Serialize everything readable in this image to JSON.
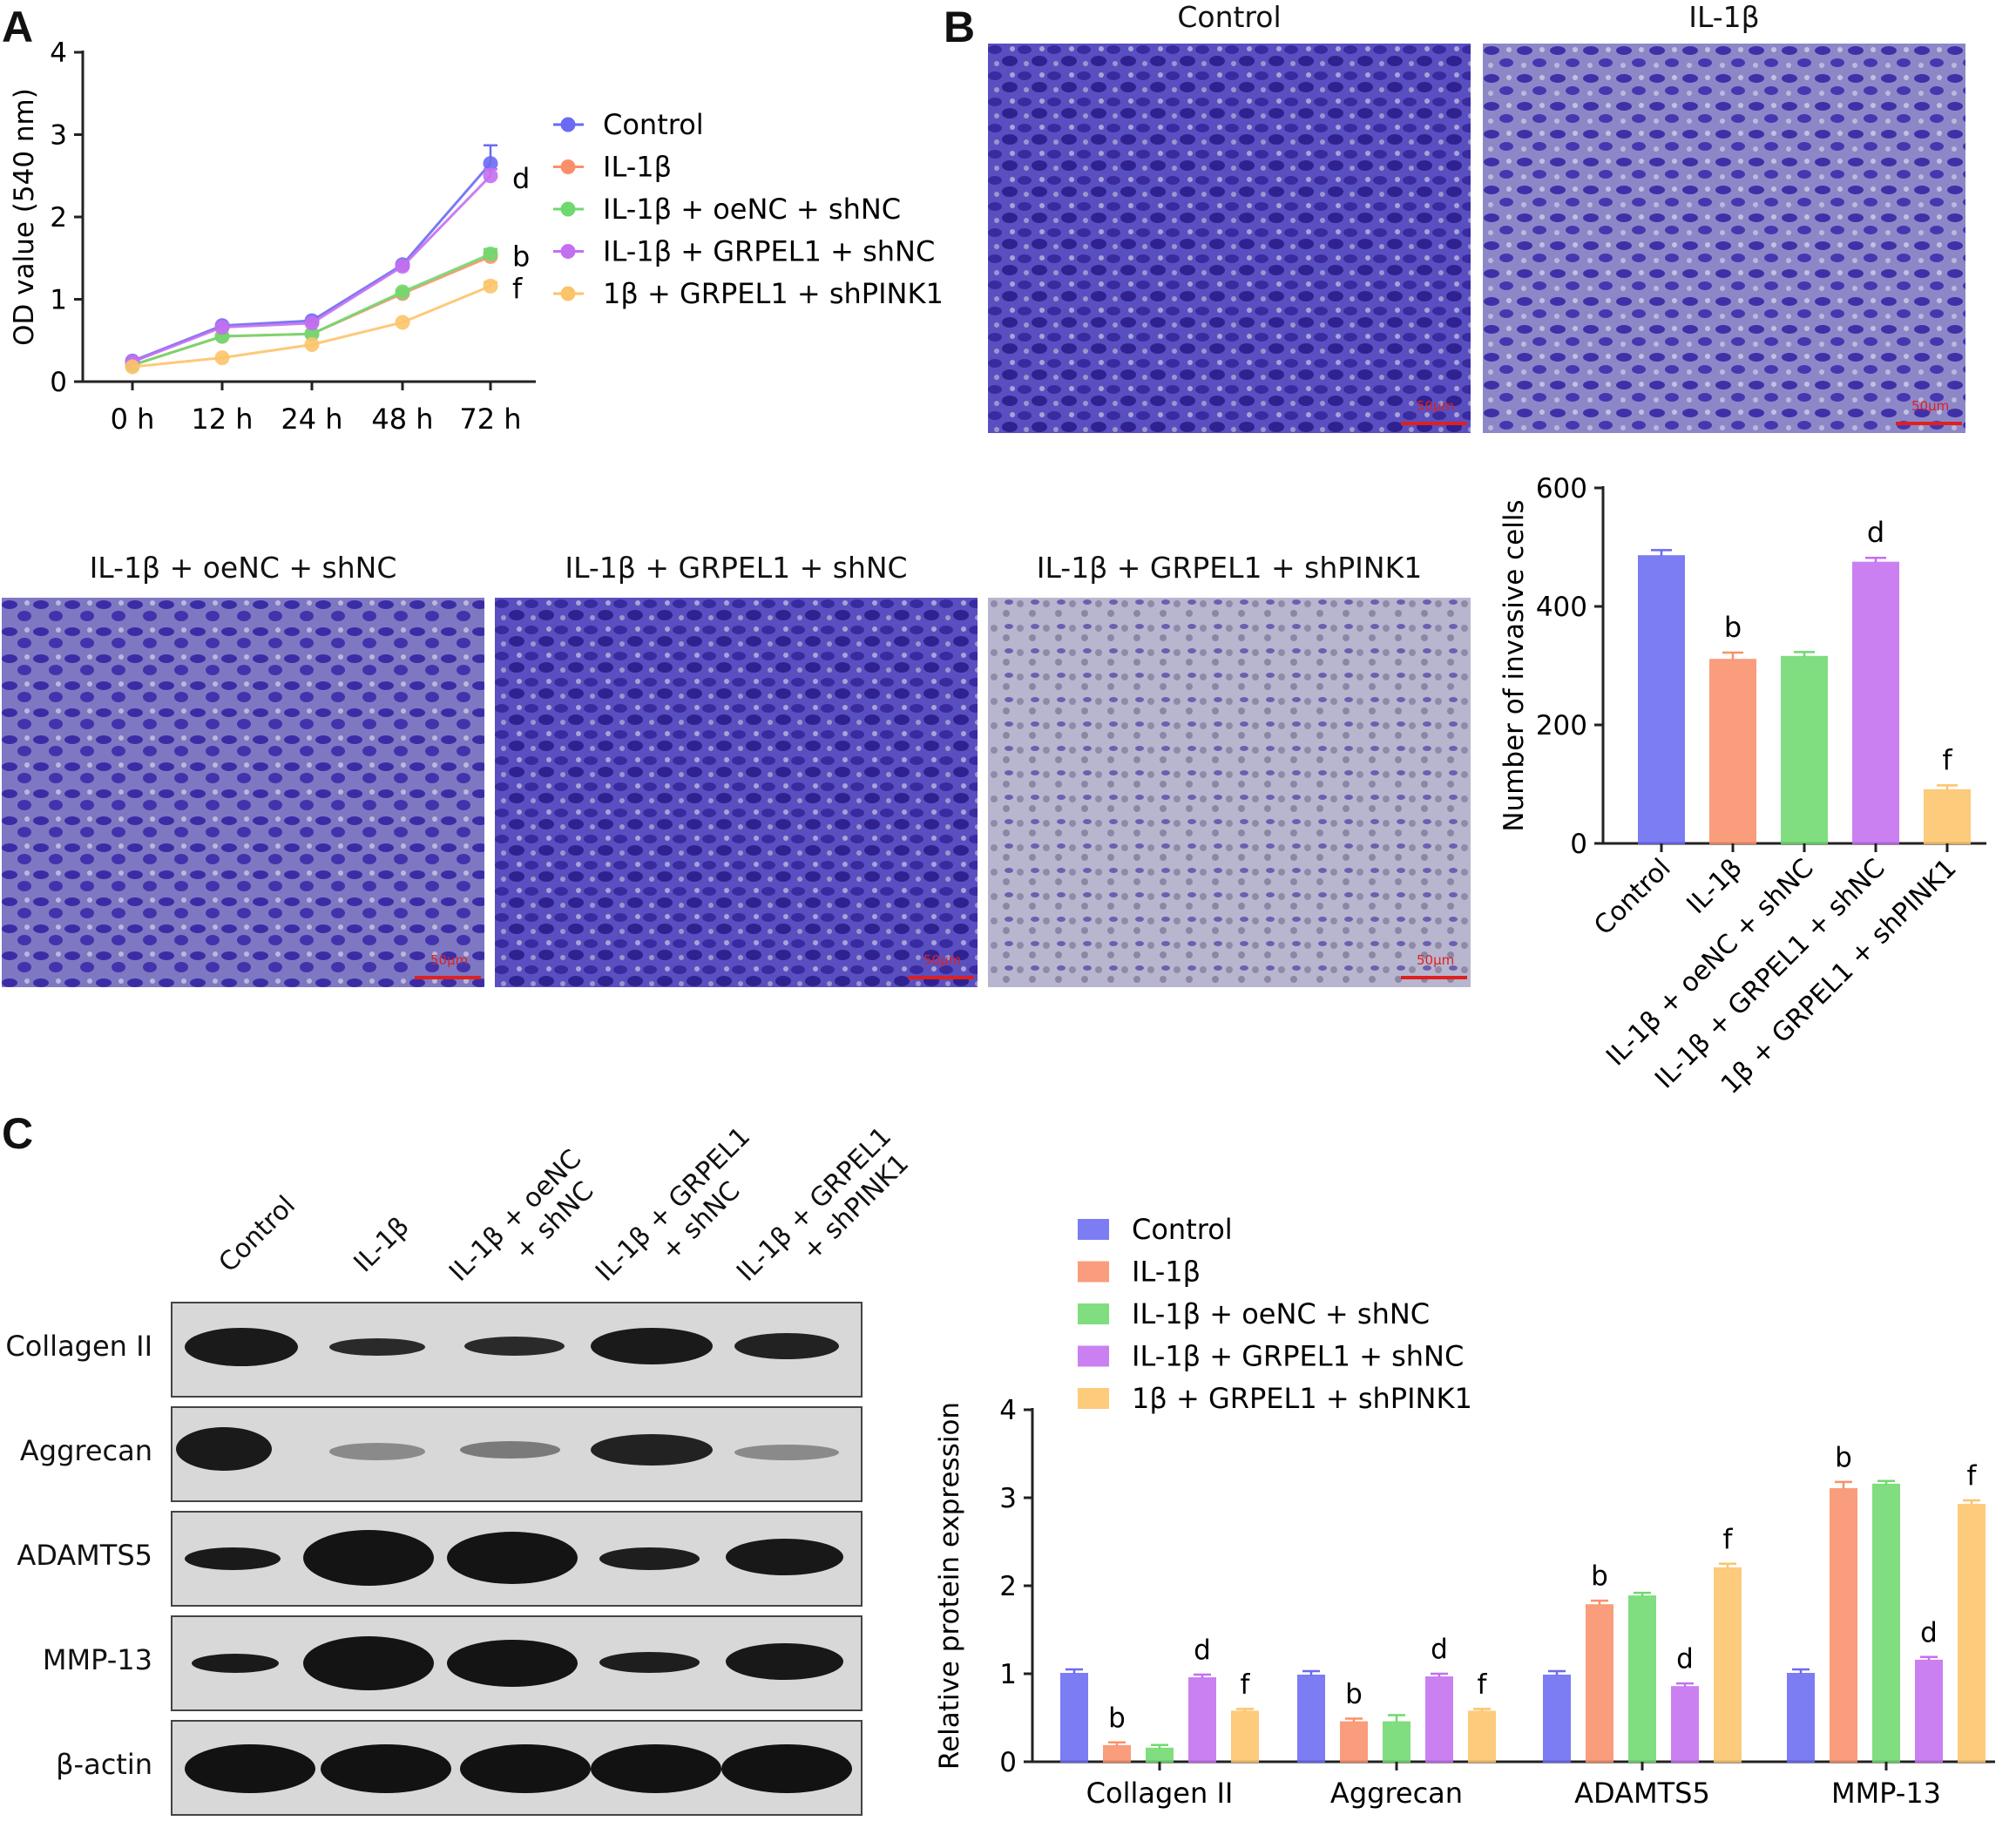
{
  "panels": {
    "a": "A",
    "b": "B",
    "c": "C"
  },
  "colors": {
    "control": "#6a6af2",
    "il1b": "#f9906a",
    "oenc": "#6fd96f",
    "grpel1": "#c46ff0",
    "shpink1": "#fcc46a"
  },
  "panel_b_images": {
    "titles": [
      "Control",
      "IL-1β",
      "IL-1β + oeNC + shNC",
      "IL-1β + GRPEL1 + shNC",
      "IL-1β + GRPEL1 + shPINK1"
    ],
    "scale_label": "50μm"
  },
  "panel_c_blot": {
    "lanes": [
      [
        "Control"
      ],
      [
        "IL-1β"
      ],
      [
        "IL-1β + oeNC",
        "+ shNC"
      ],
      [
        "IL-1β + GRPEL1",
        "+ shNC"
      ],
      [
        "IL-1β + GRPEL1",
        "+ shPINK1"
      ]
    ],
    "rows": [
      "Collagen II",
      "Aggrecan",
      "ADAMTS5",
      "MMP-13",
      "β-actin"
    ]
  },
  "chart_data": [
    {
      "type": "line",
      "panel": "A",
      "ylabel": "OD value (540 nm)",
      "xlabel": "",
      "categories": [
        "0 h",
        "12 h",
        "24 h",
        "48 h",
        "72 h"
      ],
      "ylim": [
        0,
        4
      ],
      "yticks": [
        "0",
        "1",
        "2",
        "3",
        "4"
      ],
      "legend": "right",
      "series": [
        {
          "name": "Control",
          "color": "#6a6af2",
          "values": [
            0.25,
            0.68,
            0.74,
            1.42,
            2.65
          ],
          "sig": ""
        },
        {
          "name": "IL-1β",
          "color": "#f9906a",
          "values": [
            0.2,
            0.55,
            0.58,
            1.07,
            1.52
          ],
          "sig": ""
        },
        {
          "name": "IL-1β + oeNC + shNC",
          "color": "#6fd96f",
          "values": [
            0.2,
            0.55,
            0.58,
            1.09,
            1.55
          ],
          "sig": "b"
        },
        {
          "name": "IL-1β + GRPEL1 + shNC",
          "color": "#c46ff0",
          "values": [
            0.24,
            0.66,
            0.71,
            1.4,
            2.5
          ],
          "sig": "d"
        },
        {
          "name": "1β + GRPEL1 + shPINK1",
          "color": "#fcc46a",
          "values": [
            0.18,
            0.29,
            0.45,
            0.72,
            1.16
          ],
          "sig": "f"
        }
      ],
      "error_last": [
        0.22,
        0.06,
        0.06,
        0.08,
        0.05
      ]
    },
    {
      "type": "bar",
      "panel": "B",
      "ylabel": "Number of invasive cells",
      "categories": [
        "Control",
        "IL-1β",
        "IL-1β + oeNC + shNC",
        "IL-1β + GRPEL1 + shNC",
        "1β + GRPEL1 + shPINK1"
      ],
      "values": [
        485,
        310,
        315,
        474,
        90
      ],
      "errors": [
        10,
        12,
        8,
        8,
        8
      ],
      "sig": [
        "",
        "b",
        "",
        "d",
        "f"
      ],
      "ylim": [
        0,
        600
      ],
      "yticks": [
        "0",
        "200",
        "400",
        "600"
      ]
    },
    {
      "type": "bar",
      "panel": "C",
      "ylabel": "Relative protein expression",
      "categories": [
        "Collagen II",
        "Aggrecan",
        "ADAMTS5",
        "MMP-13"
      ],
      "ylim": [
        0,
        4
      ],
      "yticks": [
        "0",
        "1",
        "2",
        "3",
        "4"
      ],
      "legend": "top",
      "series": [
        {
          "name": "Control",
          "color": "#6a6af2",
          "values": [
            1.0,
            0.98,
            0.98,
            1.0
          ],
          "errors": [
            0.05,
            0.05,
            0.05,
            0.05
          ],
          "sig": [
            "",
            "",
            "",
            ""
          ]
        },
        {
          "name": "IL-1β",
          "color": "#f9906a",
          "values": [
            0.18,
            0.45,
            1.78,
            3.1
          ],
          "errors": [
            0.04,
            0.04,
            0.05,
            0.08
          ],
          "sig": [
            "b",
            "b",
            "b",
            "b"
          ]
        },
        {
          "name": "IL-1β + oeNC + shNC",
          "color": "#6fd96f",
          "values": [
            0.15,
            0.45,
            1.88,
            3.15
          ],
          "errors": [
            0.04,
            0.08,
            0.04,
            0.04
          ],
          "sig": [
            "",
            "",
            "",
            ""
          ]
        },
        {
          "name": "IL-1β + GRPEL1 + shNC",
          "color": "#c46ff0",
          "values": [
            0.95,
            0.96,
            0.85,
            1.15
          ],
          "errors": [
            0.04,
            0.04,
            0.04,
            0.04
          ],
          "sig": [
            "d",
            "d",
            "d",
            "d"
          ]
        },
        {
          "name": "1β + GRPEL1 + shPINK1",
          "color": "#fcc46a",
          "values": [
            0.57,
            0.57,
            2.2,
            2.92
          ],
          "errors": [
            0.03,
            0.03,
            0.05,
            0.05
          ],
          "sig": [
            "f",
            "f",
            "f",
            "f"
          ]
        }
      ]
    }
  ]
}
